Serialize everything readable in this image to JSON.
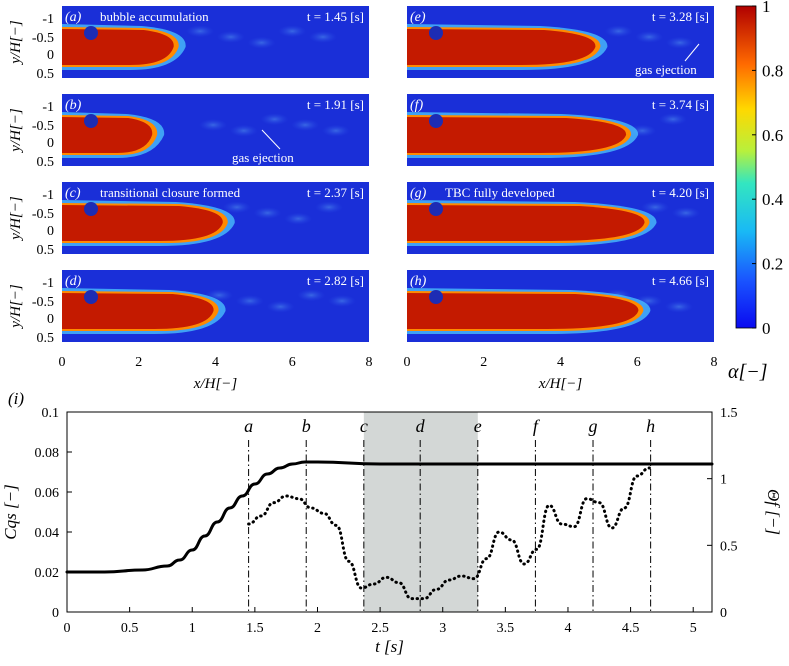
{
  "colors": {
    "blue_bg": "#1a2fd8",
    "cavity_red": "#c41a00",
    "cavity_edge": "#ff8a00",
    "cyan_halo": "#4cc8ff",
    "marker": "#1d2cb4",
    "shade": "#d3d7d6"
  },
  "panels": [
    {
      "id": "a",
      "label": "(a)",
      "time": "t = 1.45 [s]",
      "note": "bubble accumulation",
      "fill_fraction": 0.37
    },
    {
      "id": "b",
      "label": "(b)",
      "time": "t = 1.91 [s]",
      "note": "gas ejection",
      "fill_fraction": 0.3
    },
    {
      "id": "c",
      "label": "(c)",
      "time": "t = 2.37 [s]",
      "note": "transitional closure formed",
      "fill_fraction": 0.53
    },
    {
      "id": "d",
      "label": "(d)",
      "time": "t = 2.82 [s]",
      "note": "",
      "fill_fraction": 0.5
    },
    {
      "id": "e",
      "label": "(e)",
      "time": "t = 3.28 [s]",
      "note": "gas ejection",
      "fill_fraction": 0.62
    },
    {
      "id": "f",
      "label": "(f)",
      "time": "t = 3.74 [s]",
      "note": "",
      "fill_fraction": 0.72
    },
    {
      "id": "g",
      "label": "(g)",
      "time": "t = 4.20 [s]",
      "note": "TBC fully developed",
      "fill_fraction": 0.78
    },
    {
      "id": "h",
      "label": "(h)",
      "time": "t = 4.66 [s]",
      "note": "",
      "fill_fraction": 0.76
    }
  ],
  "panel_axes": {
    "ylabel": "y/H[−]",
    "xlabel": "x/H[−]",
    "yticks": [
      "-1",
      "-0.5",
      "0",
      "0.5"
    ],
    "xticks": [
      "0",
      "2",
      "4",
      "6",
      "8"
    ]
  },
  "colorbar": {
    "label": "α[−]",
    "ticks": [
      "1",
      "0.8",
      "0.6",
      "0.4",
      "0.2",
      "0"
    ],
    "range": [
      0,
      1
    ]
  },
  "chart_data": {
    "type": "line",
    "panel_label": "(i)",
    "xlabel": "t [s]",
    "ylabel_left": "Cqs [−]",
    "ylabel_right": "Θf [−]",
    "xlim": [
      0,
      5.15
    ],
    "ylim_left": [
      0,
      0.1
    ],
    "ylim_right": [
      0,
      1.5
    ],
    "xticks": [
      "0",
      "0.5",
      "1",
      "1.5",
      "2",
      "2.5",
      "3",
      "3.5",
      "4",
      "4.5",
      "5"
    ],
    "yticks_left": [
      "0",
      "0.02",
      "0.04",
      "0.06",
      "0.08",
      "0.1"
    ],
    "yticks_right": [
      "0",
      "0.5",
      "1",
      "1.5"
    ],
    "shaded_interval": [
      2.37,
      3.28
    ],
    "vlines": [
      {
        "label": "a",
        "t": 1.45
      },
      {
        "label": "b",
        "t": 1.91
      },
      {
        "label": "c",
        "t": 2.37
      },
      {
        "label": "d",
        "t": 2.82
      },
      {
        "label": "e",
        "t": 3.28
      },
      {
        "label": "f",
        "t": 3.74
      },
      {
        "label": "g",
        "t": 4.2
      },
      {
        "label": "h",
        "t": 4.66
      }
    ],
    "series": [
      {
        "axis": "left",
        "style": "solid",
        "x": [
          0,
          0.3,
          0.6,
          0.8,
          0.9,
          1.0,
          1.1,
          1.2,
          1.3,
          1.4,
          1.5,
          1.6,
          1.7,
          1.8,
          1.9,
          2.0,
          2.5,
          3.0,
          3.5,
          4.0,
          4.5,
          5.15
        ],
        "y": [
          0.02,
          0.02,
          0.021,
          0.023,
          0.026,
          0.031,
          0.038,
          0.045,
          0.052,
          0.058,
          0.064,
          0.069,
          0.072,
          0.074,
          0.075,
          0.075,
          0.074,
          0.074,
          0.074,
          0.074,
          0.074,
          0.074
        ]
      },
      {
        "axis": "right",
        "style": "dotted",
        "x": [
          1.45,
          1.55,
          1.65,
          1.75,
          1.85,
          1.95,
          2.05,
          2.15,
          2.25,
          2.35,
          2.45,
          2.55,
          2.65,
          2.75,
          2.85,
          2.95,
          3.05,
          3.15,
          3.25,
          3.35,
          3.45,
          3.55,
          3.65,
          3.75,
          3.85,
          3.95,
          4.05,
          4.15,
          4.25,
          4.35,
          4.45,
          4.55,
          4.65
        ],
        "y": [
          0.66,
          0.72,
          0.82,
          0.87,
          0.85,
          0.78,
          0.74,
          0.65,
          0.38,
          0.18,
          0.21,
          0.26,
          0.22,
          0.1,
          0.1,
          0.17,
          0.24,
          0.27,
          0.25,
          0.4,
          0.6,
          0.54,
          0.36,
          0.47,
          0.8,
          0.66,
          0.64,
          0.85,
          0.82,
          0.63,
          0.78,
          1.02,
          1.08
        ]
      }
    ]
  }
}
